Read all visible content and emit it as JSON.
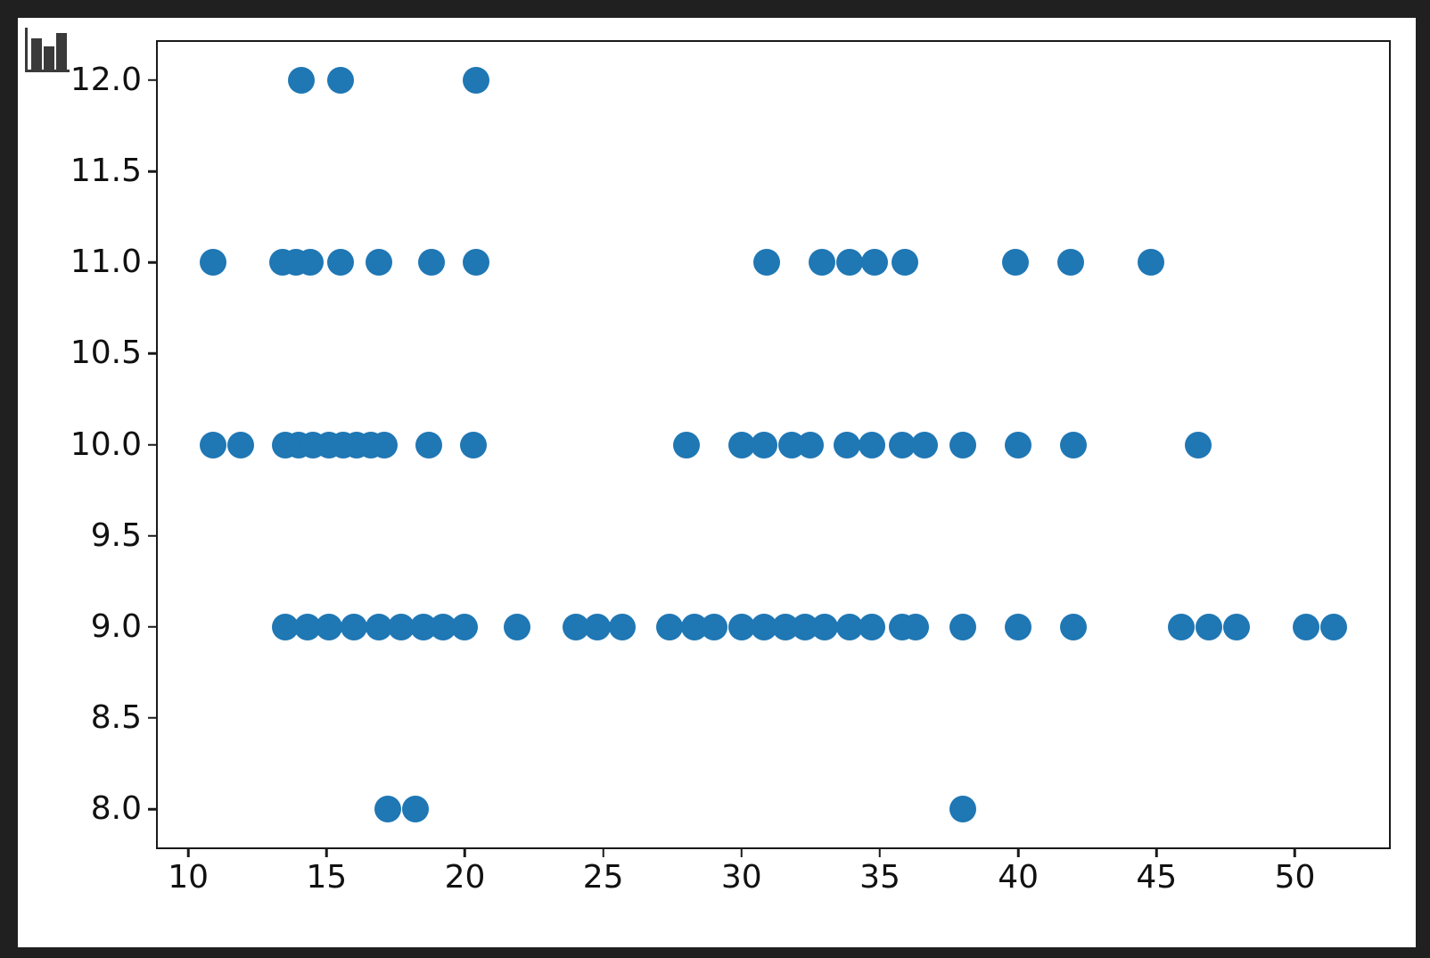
{
  "ui": {
    "window_bg": "#202020",
    "figure_bg": "#ffffff",
    "axis_color": "#1a1a1a",
    "corner_icon": "bar-chart-icon",
    "icon_color": "#3a3a3a"
  },
  "chart_data": {
    "type": "scatter",
    "title": "",
    "xlabel": "",
    "ylabel": "",
    "grid": false,
    "legend": null,
    "marker_color": "#1f77b4",
    "marker_diameter_px": 30,
    "xlim": [
      8.9,
      53.4
    ],
    "ylim": [
      7.79,
      12.21
    ],
    "x_ticks": [
      10,
      15,
      20,
      25,
      30,
      35,
      40,
      45,
      50
    ],
    "x_tick_labels": [
      "10",
      "15",
      "20",
      "25",
      "30",
      "35",
      "40",
      "45",
      "50"
    ],
    "y_ticks": [
      8.0,
      8.5,
      9.0,
      9.5,
      10.0,
      10.5,
      11.0,
      11.5,
      12.0
    ],
    "y_tick_labels": [
      "8.0",
      "8.5",
      "9.0",
      "9.5",
      "10.0",
      "10.5",
      "11.0",
      "11.5",
      "12.0"
    ],
    "series": [
      {
        "y": 12,
        "x": [
          14.1,
          15.5,
          20.4
        ]
      },
      {
        "y": 11,
        "x": [
          10.9,
          13.4,
          13.9,
          14.4,
          15.5,
          16.9,
          18.8,
          20.4,
          30.9,
          32.9,
          33.9,
          34.8,
          35.9,
          39.9,
          41.9,
          44.8
        ]
      },
      {
        "y": 10,
        "x": [
          10.9,
          11.9,
          13.5,
          14.0,
          14.5,
          15.1,
          15.6,
          16.1,
          16.6,
          17.1,
          18.7,
          20.3,
          28.0,
          30.0,
          30.8,
          31.8,
          32.5,
          33.8,
          34.7,
          35.8,
          36.6,
          38.0,
          40.0,
          42.0,
          46.5
        ]
      },
      {
        "y": 9,
        "x": [
          13.5,
          14.3,
          15.1,
          16.0,
          16.9,
          17.7,
          18.5,
          19.2,
          20.0,
          21.9,
          24.0,
          24.8,
          25.7,
          27.4,
          28.3,
          29.0,
          30.0,
          30.8,
          31.6,
          32.3,
          33.0,
          33.9,
          34.7,
          35.8,
          36.3,
          38.0,
          40.0,
          42.0,
          45.9,
          46.9,
          47.9,
          50.4,
          51.4
        ]
      },
      {
        "y": 8,
        "x": [
          17.2,
          18.2,
          38.0
        ]
      }
    ]
  }
}
